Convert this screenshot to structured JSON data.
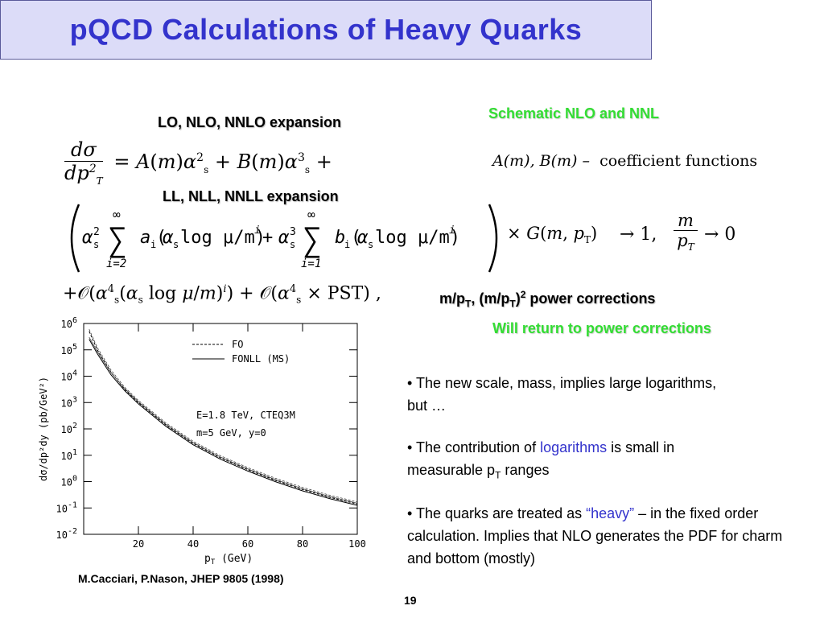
{
  "title": "pQCD Calculations of Heavy Quarks",
  "labels": {
    "lo_nlo": "LO, NLO, NNLO expansion",
    "ll_nll": "LL, NLL, NNLL expansion",
    "schematic": "Schematic NLO and NNL",
    "coeff": "coefficient functions",
    "coeff_terms": "A(m),  B(m)  –",
    "power_corr_prefix": "m/p",
    "power_corr_suffix": "power corrections",
    "will_return": "Will return to power corrections"
  },
  "equations": {
    "eq1_lhs_num": "dσ",
    "eq1_lhs_den": "dp",
    "eq1_rhs": "= A(m)α",
    "eq2_limit_left": "→ 1,",
    "eq2_limit_right": "→ 0",
    "eq2_frac_num": "m",
    "eq2_frac_den": "p"
  },
  "bullets": [
    {
      "text_a": "The new scale, mass, implies large logarithms, but …"
    },
    {
      "text_a": "The contribution of ",
      "highlight": "logarithms",
      "text_b": " is small in measurable p",
      "sub": "T",
      "text_c": " ranges"
    },
    {
      "text_a": "The quarks are treated as ",
      "highlight": "“heavy”",
      "text_b": " – in the fixed order calculation. Implies that NLO generates the PDF for charm and bottom (mostly)"
    }
  ],
  "caption": "M.Cacciari, P.Nason, JHEP 9805 (1998)",
  "page_number": "19",
  "colors": {
    "title": "#3333cc",
    "title_bg": "#dcdcf8",
    "green": "#33dd33",
    "highlight": "#3333cc"
  },
  "chart_data": {
    "type": "line",
    "xlabel": "p",
    "ylabel": "dσ/dp²dy (pb/GeV²)",
    "xlim": [
      0,
      100
    ],
    "ylim_log10": [
      -2,
      6
    ],
    "x_ticks": [
      "20",
      "40",
      "60",
      "80",
      "100"
    ],
    "y_ticks": [
      "10^6",
      "10^5",
      "10^4",
      "10^3",
      "10^2",
      "10^1",
      "10^0",
      "10^-1",
      "10^-2"
    ],
    "legend": [
      "FO",
      "FONLL (MS)"
    ],
    "annotations": [
      "E=1.8 TeV, CTEQ3M",
      "m=5 GeV, y=0"
    ],
    "series": [
      {
        "name": "FO",
        "x": [
          2,
          5,
          10,
          15,
          20,
          30,
          40,
          50,
          60,
          70,
          80,
          90,
          100
        ],
        "log10y": [
          5.7,
          5.0,
          4.15,
          3.5,
          3.0,
          2.15,
          1.45,
          0.9,
          0.45,
          0.05,
          -0.3,
          -0.6,
          -0.85
        ]
      },
      {
        "name": "FONLL (MS)",
        "x": [
          2,
          5,
          10,
          15,
          20,
          30,
          40,
          50,
          60,
          70,
          80,
          90,
          100
        ],
        "log10y": [
          5.4,
          4.85,
          4.05,
          3.45,
          2.95,
          2.1,
          1.4,
          0.85,
          0.4,
          0.0,
          -0.35,
          -0.65,
          -0.9
        ]
      }
    ]
  }
}
